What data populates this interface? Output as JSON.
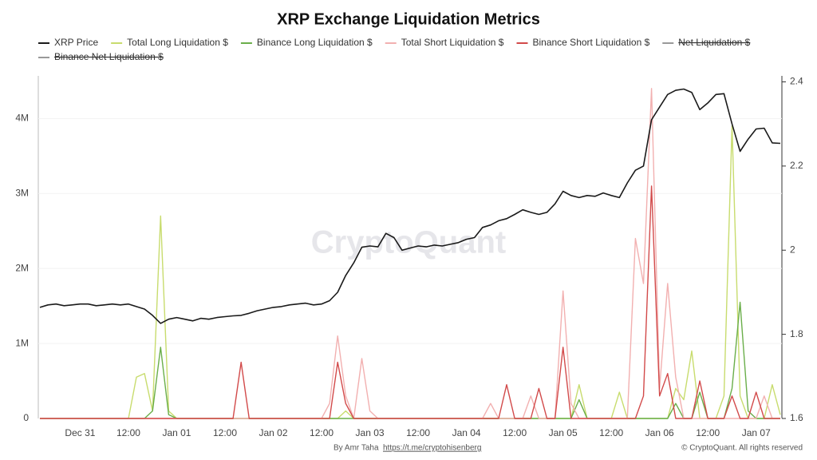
{
  "chart_data": {
    "type": "line",
    "title": "XRP Exchange Liquidation Metrics",
    "watermark": "CryptoQuant",
    "footer_author": "By Amr Taha",
    "footer_link": "https://t.me/cryptohisenberg",
    "footer_copyright": "© CryptoQuant. All rights reserved",
    "categories": [
      null,
      null,
      null,
      null,
      null,
      "Dec 31",
      null,
      null,
      null,
      null,
      null,
      "12:00",
      null,
      null,
      null,
      null,
      null,
      "Jan 01",
      null,
      null,
      null,
      null,
      null,
      "12:00",
      null,
      null,
      null,
      null,
      null,
      "Jan 02",
      null,
      null,
      null,
      null,
      null,
      "12:00",
      null,
      null,
      null,
      null,
      null,
      "Jan 03",
      null,
      null,
      null,
      null,
      null,
      "12:00",
      null,
      null,
      null,
      null,
      null,
      "Jan 04",
      null,
      null,
      null,
      null,
      null,
      "12:00",
      null,
      null,
      null,
      null,
      null,
      "Jan 05",
      null,
      null,
      null,
      null,
      null,
      "12:00",
      null,
      null,
      null,
      null,
      null,
      "Jan 06",
      null,
      null,
      null,
      null,
      null,
      "12:00",
      null,
      null,
      null,
      null,
      null,
      "Jan 07",
      null,
      null,
      null
    ],
    "ylim": [
      0,
      4.6
    ],
    "yticks": [
      0,
      {
        "value": 1,
        "label": "1M"
      },
      {
        "value": 2,
        "label": "2M"
      },
      {
        "value": 3,
        "label": "3M"
      },
      {
        "value": 4,
        "label": "4M"
      }
    ],
    "y2lim": [
      1.6,
      2.42
    ],
    "y2ticks": [
      1.6,
      1.8,
      2,
      2.2,
      2.4
    ],
    "grid": true,
    "series": [
      {
        "name": "XRP Price",
        "color": "#1a1a1a",
        "axis": "y2",
        "values": [
          1.864,
          1.87,
          1.872,
          1.868,
          1.87,
          1.872,
          1.872,
          1.868,
          1.87,
          1.872,
          1.87,
          1.872,
          1.866,
          1.86,
          1.845,
          1.826,
          1.836,
          1.84,
          1.836,
          1.832,
          1.838,
          1.836,
          1.84,
          1.842,
          1.844,
          1.845,
          1.85,
          1.856,
          1.86,
          1.864,
          1.866,
          1.87,
          1.872,
          1.874,
          1.87,
          1.872,
          1.88,
          1.9,
          1.94,
          1.97,
          2.007,
          2.01,
          2.008,
          2.04,
          2.03,
          2.0,
          2.005,
          2.01,
          2.008,
          2.012,
          2.01,
          2.014,
          2.018,
          2.026,
          2.03,
          2.054,
          2.06,
          2.07,
          2.075,
          2.085,
          2.096,
          2.09,
          2.085,
          2.09,
          2.11,
          2.14,
          2.13,
          2.125,
          2.13,
          2.128,
          2.136,
          2.13,
          2.125,
          2.16,
          2.19,
          2.2,
          2.31,
          2.34,
          2.37,
          2.38,
          2.383,
          2.375,
          2.334,
          2.35,
          2.37,
          2.372,
          2.3,
          2.235,
          2.264,
          2.288,
          2.29,
          2.255,
          2.254
        ]
      },
      {
        "name": "Total Long Liquidation $",
        "color": "#c8dc6e",
        "values": [
          0,
          0,
          0,
          0,
          0,
          0,
          0,
          0,
          0,
          0,
          0,
          0,
          0.55,
          0.6,
          0.1,
          2.7,
          0.1,
          0,
          0,
          0,
          0,
          0,
          0,
          0,
          0,
          0,
          0,
          0,
          0,
          0,
          0,
          0,
          0,
          0,
          0,
          0,
          0,
          0,
          0.1,
          0,
          0,
          0,
          0,
          0,
          0,
          0,
          0,
          0,
          0,
          0,
          0,
          0,
          0,
          0,
          0,
          0,
          0,
          0,
          0,
          0,
          0,
          0,
          0,
          0,
          0,
          0,
          0,
          0.45,
          0,
          0,
          0,
          0,
          0.35,
          0,
          0,
          0,
          0,
          0,
          0,
          0.4,
          0.25,
          0.9,
          0,
          0,
          0,
          0.3,
          3.9,
          0.3,
          0,
          0,
          0,
          0.45,
          0.05
        ]
      },
      {
        "name": "Binance Long Liquidation $",
        "color": "#6aae4a",
        "values": [
          0,
          0,
          0,
          0,
          0,
          0,
          0,
          0,
          0,
          0,
          0,
          0,
          0,
          0,
          0.1,
          0.95,
          0.05,
          0,
          0,
          0,
          0,
          0,
          0,
          0,
          0,
          0,
          0,
          0,
          0,
          0,
          0,
          0,
          0,
          0,
          0,
          0,
          0,
          0,
          0,
          0,
          0,
          0,
          0,
          0,
          0,
          0,
          0,
          0,
          0,
          0,
          0,
          0,
          0,
          0,
          0,
          0,
          0,
          0,
          0,
          0,
          0,
          0,
          0,
          0,
          0,
          0,
          0,
          0.25,
          0,
          0,
          0,
          0,
          0,
          0,
          0,
          0,
          0,
          0,
          0,
          0.2,
          0,
          0,
          0.35,
          0,
          0,
          0,
          0.4,
          1.55,
          0.1,
          0,
          0,
          0,
          0
        ]
      },
      {
        "name": "Total Short Liquidation $",
        "color": "#f2b0b0",
        "values": [
          0,
          0,
          0,
          0,
          0,
          0,
          0,
          0,
          0,
          0,
          0,
          0,
          0,
          0,
          0,
          0,
          0,
          0,
          0,
          0,
          0,
          0,
          0,
          0,
          0,
          0,
          0,
          0,
          0,
          0,
          0,
          0,
          0,
          0,
          0,
          0,
          0.2,
          1.1,
          0.3,
          0,
          0.8,
          0.1,
          0,
          0,
          0,
          0,
          0,
          0,
          0,
          0,
          0,
          0,
          0,
          0,
          0,
          0,
          0.2,
          0,
          0,
          0,
          0,
          0.3,
          0,
          0,
          0,
          1.7,
          0.2,
          0,
          0,
          0,
          0,
          0,
          0,
          0,
          2.4,
          1.8,
          4.4,
          0.4,
          1.8,
          0.55,
          0,
          0,
          0,
          0,
          0,
          0,
          0,
          0,
          0,
          0,
          0.3,
          0,
          0
        ]
      },
      {
        "name": "Binance Short Liquidation $",
        "color": "#d24a4a",
        "values": [
          0,
          0,
          0,
          0,
          0,
          0,
          0,
          0,
          0,
          0,
          0,
          0,
          0,
          0,
          0,
          0,
          0,
          0,
          0,
          0,
          0,
          0,
          0,
          0,
          0,
          0.75,
          0,
          0,
          0,
          0,
          0,
          0,
          0,
          0,
          0,
          0,
          0,
          0.75,
          0.2,
          0,
          0,
          0,
          0,
          0,
          0,
          0,
          0,
          0,
          0,
          0,
          0,
          0,
          0,
          0,
          0,
          0,
          0,
          0,
          0.45,
          0,
          0,
          0,
          0.4,
          0,
          0,
          0.95,
          0,
          0,
          0,
          0,
          0,
          0,
          0,
          0,
          0,
          0.3,
          3.1,
          0.3,
          0.6,
          0,
          0,
          0,
          0.5,
          0,
          0,
          0,
          0.3,
          0,
          0,
          0.35,
          0,
          0,
          0
        ]
      },
      {
        "name": "Net Liquidation $",
        "color": "#555555",
        "visible": false
      },
      {
        "name": "Binance Net Liquidation $",
        "color": "#999999",
        "visible": false
      }
    ]
  }
}
